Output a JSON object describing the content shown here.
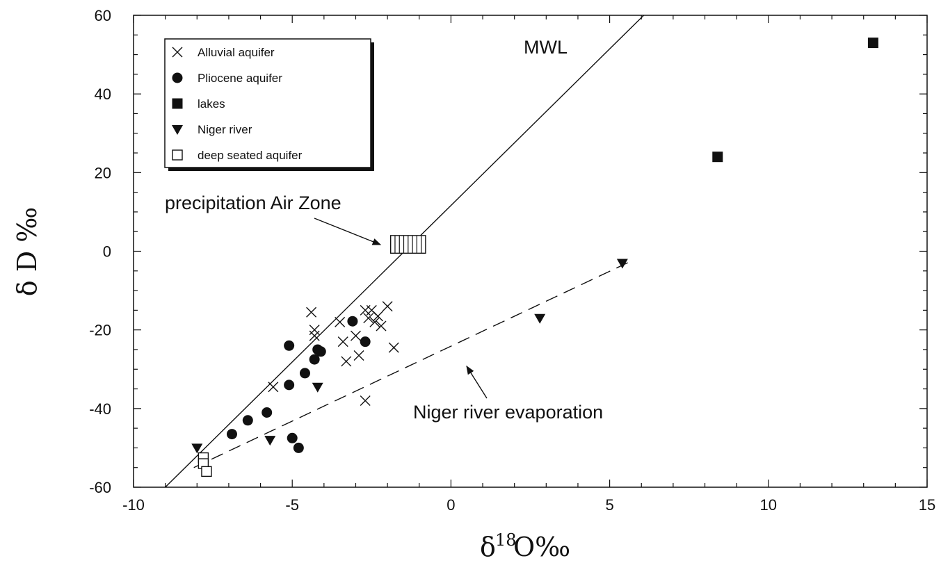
{
  "chart_data": {
    "type": "scatter",
    "xlabel": {
      "prefix": "δ",
      "sup": "18",
      "suffix": " O‰"
    },
    "ylabel": "δ D ‰",
    "xlim": [
      -10,
      15
    ],
    "ylim": [
      -60,
      60
    ],
    "xticks": [
      -10,
      -5,
      0,
      5,
      10,
      15
    ],
    "xtick_labels": [
      "-10",
      "-5",
      "0",
      "5",
      "10",
      "15"
    ],
    "yticks": [
      -60,
      -40,
      -20,
      0,
      20,
      40,
      60
    ],
    "ytick_labels": [
      "-60",
      "-40",
      "-20",
      "0",
      "20",
      "40",
      "60"
    ],
    "grid": false,
    "legend_position": "top-left",
    "series": [
      {
        "name": "Alluvial aquifer",
        "marker": "x",
        "points": [
          [
            -4.4,
            -15.5
          ],
          [
            -4.3,
            -20
          ],
          [
            -4.3,
            -21.5
          ],
          [
            -3.5,
            -18
          ],
          [
            -3.4,
            -23
          ],
          [
            -3.3,
            -28
          ],
          [
            -3.0,
            -21.5
          ],
          [
            -2.9,
            -26.5
          ],
          [
            -2.7,
            -15
          ],
          [
            -2.6,
            -17
          ],
          [
            -2.5,
            -15
          ],
          [
            -2.4,
            -18
          ],
          [
            -2.3,
            -16.5
          ],
          [
            -2.2,
            -19
          ],
          [
            -2.0,
            -14
          ],
          [
            -1.8,
            -24.5
          ],
          [
            -2.7,
            -38
          ],
          [
            -5.6,
            -34.5
          ]
        ]
      },
      {
        "name": "Pliocene aquifer",
        "marker": "circle",
        "points": [
          [
            -3.1,
            -17.8
          ],
          [
            -5.1,
            -24
          ],
          [
            -2.7,
            -23
          ],
          [
            -4.3,
            -27.5
          ],
          [
            -4.2,
            -25
          ],
          [
            -4.1,
            -25.5
          ],
          [
            -4.6,
            -31
          ],
          [
            -5.1,
            -34
          ],
          [
            -5.8,
            -41
          ],
          [
            -6.4,
            -43
          ],
          [
            -6.9,
            -46.5
          ],
          [
            -5.0,
            -47.5
          ],
          [
            -4.8,
            -50
          ]
        ]
      },
      {
        "name": "lakes",
        "marker": "square",
        "points": [
          [
            8.4,
            24
          ],
          [
            13.3,
            53
          ]
        ]
      },
      {
        "name": "Niger river",
        "marker": "triangle-down",
        "points": [
          [
            5.4,
            -3
          ],
          [
            2.8,
            -17
          ],
          [
            -4.2,
            -34.5
          ],
          [
            -5.7,
            -48
          ],
          [
            -8.0,
            -50
          ]
        ]
      },
      {
        "name": "deep seated aquifer",
        "marker": "open-square",
        "points": [
          [
            -7.8,
            -52.5
          ],
          [
            -7.8,
            -54
          ],
          [
            -7.7,
            -56
          ]
        ]
      }
    ],
    "lines": [
      {
        "name": "MWL",
        "style": "solid",
        "from": [
          -9,
          -60
        ],
        "to": [
          6.2,
          61
        ]
      },
      {
        "name": "Niger river evaporation",
        "style": "dashed",
        "from": [
          -8.1,
          -55
        ],
        "to": [
          5.6,
          -2.8
        ]
      }
    ],
    "zone": {
      "label": "precipitation Air Zone",
      "x": [
        -1.9,
        -0.8
      ],
      "y": [
        -0.5,
        4
      ]
    },
    "annotations": {
      "mwl": "MWL",
      "air_zone": "precipitation Air Zone",
      "evaporation": "Niger river evaporation"
    }
  }
}
